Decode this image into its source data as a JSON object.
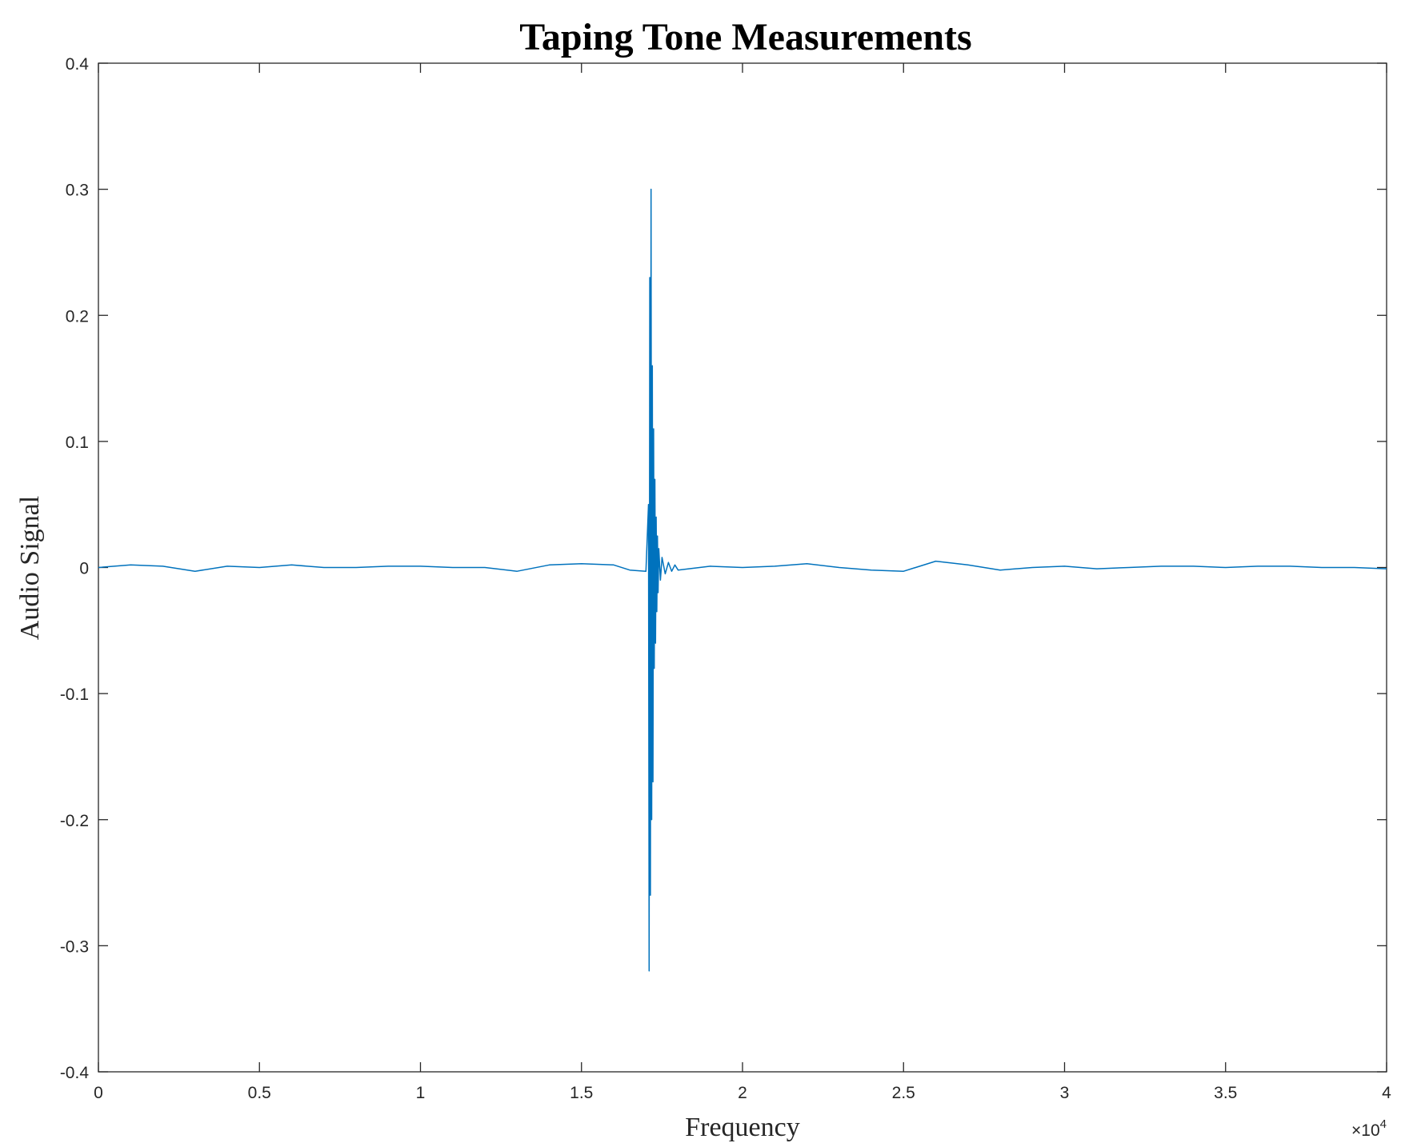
{
  "chart_data": {
    "type": "line",
    "title": "Taping Tone Measurements",
    "xlabel": "Frequency",
    "ylabel": "Audio Signal",
    "x_exponent_label": "×10",
    "x_exponent_power": "4",
    "xlim": [
      0,
      40000
    ],
    "ylim": [
      -0.4,
      0.4
    ],
    "x_ticks": [
      0,
      5000,
      10000,
      15000,
      20000,
      25000,
      30000,
      35000,
      40000
    ],
    "x_tick_labels": [
      "0",
      "0.5",
      "1",
      "1.5",
      "2",
      "2.5",
      "3",
      "3.5",
      "4"
    ],
    "y_ticks": [
      -0.4,
      -0.3,
      -0.2,
      -0.1,
      0,
      0.1,
      0.2,
      0.3,
      0.4
    ],
    "y_tick_labels": [
      "-0.4",
      "-0.3",
      "-0.2",
      "-0.1",
      "0",
      "0.1",
      "0.2",
      "0.3",
      "0.4"
    ],
    "grid": false,
    "line_color": "#0072BD",
    "series": [
      {
        "x": [
          0,
          1000,
          2000,
          3000,
          4000,
          5000,
          6000,
          7000,
          8000,
          9000,
          10000,
          11000,
          12000,
          13000,
          14000,
          15000,
          16000,
          16500,
          17000,
          17080,
          17100,
          17120,
          17140,
          17160,
          17180,
          17200,
          17220,
          17240,
          17260,
          17280,
          17300,
          17320,
          17340,
          17360,
          17380,
          17400,
          17450,
          17500,
          17600,
          17700,
          17800,
          17900,
          18000,
          19000,
          20000,
          21000,
          22000,
          23000,
          24000,
          25000,
          26000,
          27000,
          28000,
          29000,
          30000,
          31000,
          32000,
          33000,
          34000,
          35000,
          36000,
          37000,
          38000,
          39000,
          40000
        ],
        "y": [
          0.0,
          0.002,
          0.001,
          -0.003,
          0.001,
          0.0,
          0.002,
          0.0,
          0.0,
          0.001,
          0.001,
          0.0,
          0.0,
          -0.003,
          0.002,
          0.003,
          0.002,
          -0.002,
          -0.003,
          0.05,
          -0.32,
          0.23,
          -0.26,
          0.3,
          -0.2,
          0.16,
          -0.17,
          0.11,
          -0.08,
          0.07,
          -0.06,
          0.04,
          -0.035,
          0.025,
          -0.02,
          0.015,
          -0.01,
          0.008,
          -0.005,
          0.004,
          -0.003,
          0.002,
          -0.002,
          0.001,
          0.0,
          0.001,
          0.003,
          0.0,
          -0.002,
          -0.003,
          0.005,
          0.002,
          -0.002,
          0.0,
          0.001,
          -0.001,
          0.0,
          0.001,
          0.001,
          0.0,
          0.001,
          0.001,
          0.0,
          0.0,
          -0.001
        ]
      }
    ]
  }
}
